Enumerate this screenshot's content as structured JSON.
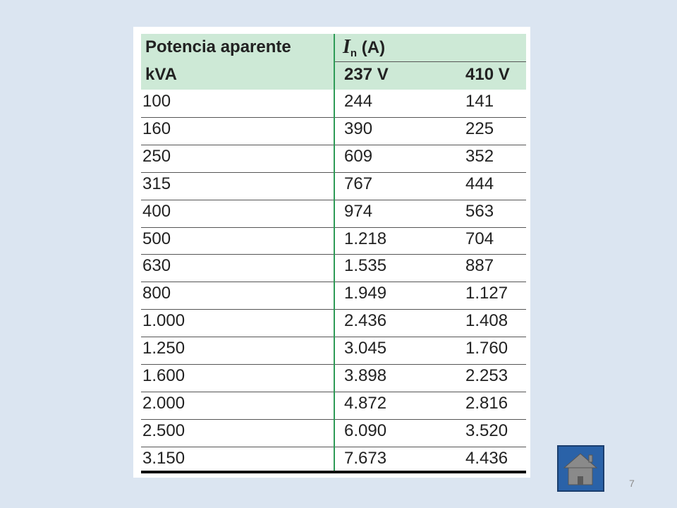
{
  "header": {
    "col1": [
      "Potencia aparente",
      "kVA"
    ],
    "current": {
      "symbol": "I",
      "subscript": "n",
      "unit": "(A)"
    },
    "voltages": [
      "237 V",
      "410 V"
    ]
  },
  "table": {
    "rows": [
      [
        "100",
        "244",
        "141"
      ],
      [
        "160",
        "390",
        "225"
      ],
      [
        "250",
        "609",
        "352"
      ],
      [
        "315",
        "767",
        "444"
      ],
      [
        "400",
        "974",
        "563"
      ],
      [
        "500",
        "1.218",
        "704"
      ],
      [
        "630",
        "1.535",
        "887"
      ],
      [
        "800",
        "1.949",
        "1.127"
      ],
      [
        "1.000",
        "2.436",
        "1.408"
      ],
      [
        "1.250",
        "3.045",
        "1.760"
      ],
      [
        "1.600",
        "3.898",
        "2.253"
      ],
      [
        "2.000",
        "4.872",
        "2.816"
      ],
      [
        "2.500",
        "6.090",
        "3.520"
      ],
      [
        "3.150",
        "7.673",
        "4.436"
      ]
    ]
  },
  "slide_number": "7"
}
